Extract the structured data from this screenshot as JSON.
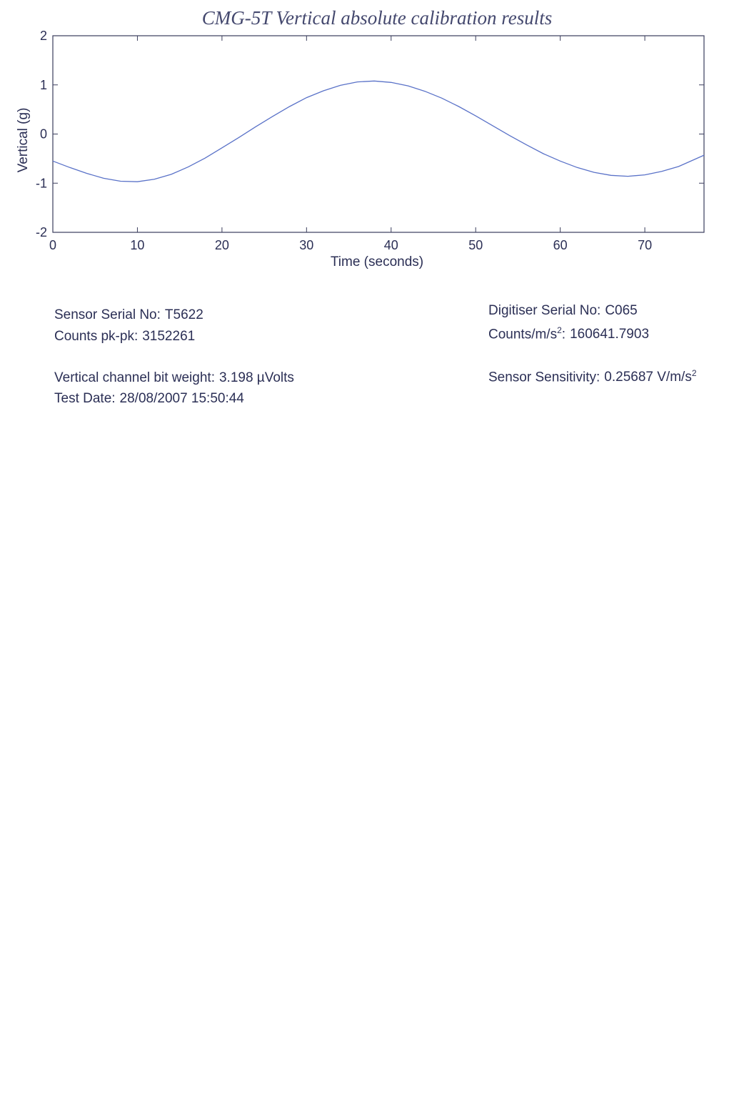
{
  "chart_data": {
    "type": "line",
    "title": "CMG-5T Vertical absolute calibration results",
    "xlabel": "Time (seconds)",
    "ylabel": "Vertical (g)",
    "xlim": [
      0,
      77
    ],
    "ylim": [
      -2,
      2
    ],
    "xticks": [
      0,
      10,
      20,
      30,
      40,
      50,
      60,
      70
    ],
    "yticks": [
      -2,
      -1,
      0,
      1,
      2
    ],
    "grid": false,
    "series": [
      {
        "color": "#5a72c8",
        "x": [
          0,
          2,
          4,
          6,
          8,
          10,
          12,
          14,
          16,
          18,
          20,
          22,
          24,
          26,
          28,
          30,
          32,
          34,
          36,
          38,
          40,
          42,
          44,
          46,
          48,
          50,
          52,
          54,
          56,
          58,
          60,
          62,
          64,
          66,
          68,
          70,
          72,
          74,
          77
        ],
        "y": [
          -0.55,
          -0.68,
          -0.8,
          -0.9,
          -0.96,
          -0.97,
          -0.92,
          -0.82,
          -0.67,
          -0.49,
          -0.28,
          -0.07,
          0.15,
          0.36,
          0.56,
          0.74,
          0.88,
          0.99,
          1.06,
          1.08,
          1.05,
          0.98,
          0.87,
          0.73,
          0.56,
          0.37,
          0.17,
          -0.03,
          -0.22,
          -0.4,
          -0.55,
          -0.68,
          -0.78,
          -0.84,
          -0.86,
          -0.83,
          -0.76,
          -0.66,
          -0.43
        ]
      }
    ]
  },
  "info": {
    "sensor_serial_label": "Sensor Serial No:",
    "sensor_serial_value": "T5622",
    "counts_pkpk_label": "Counts pk-pk:",
    "counts_pkpk_value": "3152261",
    "bit_weight_label": "Vertical channel bit weight:",
    "bit_weight_value": "3.198 µVolts",
    "test_date_label": "Test Date:",
    "test_date_value": "28/08/2007 15:50:44",
    "digitiser_serial_label": "Digitiser Serial No:",
    "digitiser_serial_value": "C065",
    "counts_per_ms2_label_base": "Counts/m/s",
    "counts_per_ms2_label_sup": "2",
    "counts_per_ms2_label_tail": ":",
    "counts_per_ms2_value": "160641.7903",
    "sensitivity_label": "Sensor Sensitivity:",
    "sensitivity_value_base": "0.25687 V/m/s",
    "sensitivity_value_sup": "2"
  }
}
